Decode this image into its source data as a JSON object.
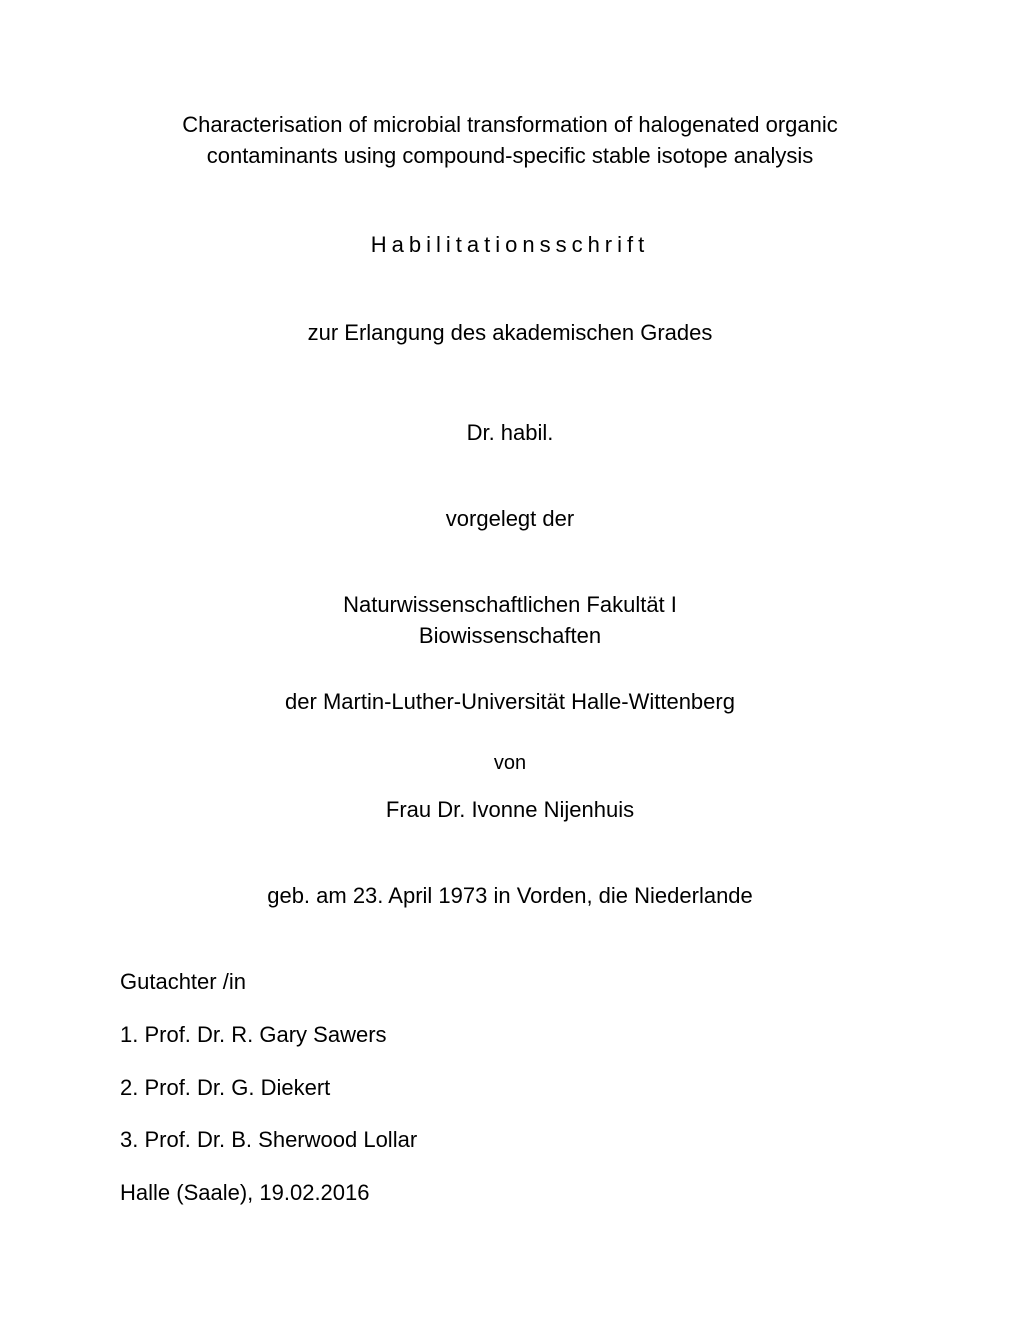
{
  "title_line1": "Characterisation of microbial transformation of halogenated organic",
  "title_line2": "contaminants using compound-specific stable isotope analysis",
  "habilitationsschrift": "Habilitationsschrift",
  "erlangung": "zur Erlangung des akademischen Grades",
  "dr_habil": "Dr. habil.",
  "vorgelegt": "vorgelegt der",
  "fakultat_line1": "Naturwissenschaftlichen Fakultät I",
  "fakultat_line2": "Biowissenschaften",
  "universitat": "der Martin-Luther-Universität Halle-Wittenberg",
  "von": "von",
  "author": "Frau Dr. Ivonne Nijenhuis",
  "birth": "geb. am 23. April 1973 in Vorden, die Niederlande",
  "gutachter_label": "Gutachter /in",
  "gutachter1": "1. Prof. Dr. R. Gary Sawers",
  "gutachter2": "2. Prof. Dr. G. Diekert",
  "gutachter3": "3. Prof. Dr. B. Sherwood Lollar",
  "location_date": "Halle (Saale), 19.02.2016"
}
